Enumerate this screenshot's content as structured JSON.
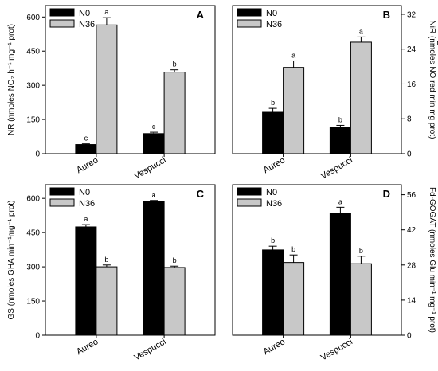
{
  "chart_data": [
    {
      "panel": "A",
      "type": "bar",
      "categories": [
        "Aureo",
        "Vespucci"
      ],
      "series": [
        {
          "name": "N0",
          "values": [
            40,
            88
          ],
          "errors": [
            3,
            6
          ],
          "letters": [
            "c",
            "c"
          ],
          "color": "#000000"
        },
        {
          "name": "N36",
          "values": [
            565,
            358
          ],
          "errors": [
            32,
            10
          ],
          "letters": [
            "a",
            "b"
          ],
          "color": "#c8c8c8"
        }
      ],
      "ylabel": "NR (nmoles NO₂ h⁻¹ mg⁻¹ prot)",
      "ylim": [
        0,
        650
      ],
      "yticks": [
        0,
        150,
        300,
        450,
        600
      ],
      "axis_side": "left",
      "legend": "top-left"
    },
    {
      "panel": "B",
      "type": "bar",
      "categories": [
        "Aureo",
        "Vespucci"
      ],
      "series": [
        {
          "name": "N0",
          "values": [
            9.5,
            6.0
          ],
          "errors": [
            0.9,
            0.5
          ],
          "letters": [
            "b",
            "b"
          ],
          "color": "#000000"
        },
        {
          "name": "N36",
          "values": [
            19.8,
            25.6
          ],
          "errors": [
            1.5,
            1.2
          ],
          "letters": [
            "a",
            "a"
          ],
          "color": "#c8c8c8"
        }
      ],
      "ylabel": "NiR (nmoles NO  red min  mg   prot)",
      "ylabel_sub": "2",
      "ylim": [
        0,
        34
      ],
      "yticks": [
        0,
        8,
        16,
        24,
        32
      ],
      "axis_side": "right",
      "legend": "top-left"
    },
    {
      "panel": "C",
      "type": "bar",
      "categories": [
        "Aureo",
        "Vespucci"
      ],
      "series": [
        {
          "name": "N0",
          "values": [
            475,
            585
          ],
          "errors": [
            10,
            6
          ],
          "letters": [
            "a",
            "a"
          ],
          "color": "#000000"
        },
        {
          "name": "N36",
          "values": [
            300,
            297
          ],
          "errors": [
            8,
            6
          ],
          "letters": [
            "b",
            "b"
          ],
          "color": "#c8c8c8"
        }
      ],
      "ylabel": "GS (nmoles GHA min⁻¹mg⁻¹ prot)",
      "ylim": [
        0,
        660
      ],
      "yticks": [
        0,
        150,
        300,
        450,
        600
      ],
      "axis_side": "left",
      "legend": "top-left"
    },
    {
      "panel": "D",
      "type": "bar",
      "categories": [
        "Aureo",
        "Vespucci"
      ],
      "series": [
        {
          "name": "N0",
          "values": [
            34,
            48.5
          ],
          "errors": [
            1.5,
            2.5
          ],
          "letters": [
            "b",
            "a"
          ],
          "color": "#000000"
        },
        {
          "name": "N36",
          "values": [
            29,
            28.5
          ],
          "errors": [
            3,
            3
          ],
          "letters": [
            "b",
            "b"
          ],
          "color": "#c8c8c8"
        }
      ],
      "ylabel": "Fd-GOGAT (nmoles Glu min⁻¹ mg⁻¹ prot)",
      "ylim": [
        0,
        60
      ],
      "yticks": [
        0,
        14,
        28,
        42,
        56
      ],
      "axis_side": "right",
      "legend": "top-left"
    }
  ]
}
